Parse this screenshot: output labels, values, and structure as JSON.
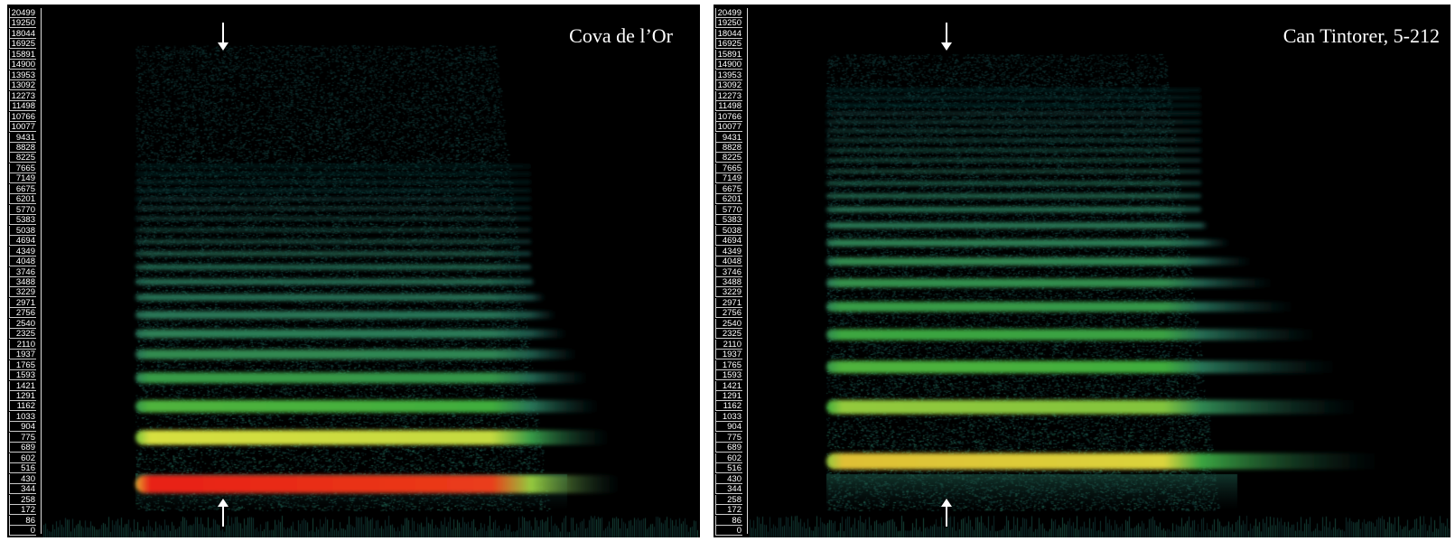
{
  "chart_data": {
    "type": "heatmap",
    "subtype": "spectrogram",
    "y_tick_labels": [
      "20499",
      "19250",
      "18044",
      "16925",
      "15891",
      "14900",
      "13953",
      "13092",
      "12273",
      "11498",
      "10766",
      "10077",
      "9431",
      "8828",
      "8225",
      "7665",
      "7149",
      "6675",
      "6201",
      "5770",
      "5383",
      "5038",
      "4694",
      "4349",
      "4048",
      "3746",
      "3488",
      "3229",
      "2971",
      "2756",
      "2540",
      "2325",
      "2110",
      "1937",
      "1765",
      "1593",
      "1421",
      "1291",
      "1162",
      "1033",
      "904",
      "775",
      "689",
      "602",
      "516",
      "430",
      "344",
      "258",
      "172",
      "86",
      "0"
    ],
    "colormap": [
      "#000000",
      "#123a3a",
      "#2a7a5a",
      "#3fae3c",
      "#d8e040",
      "#f08020",
      "#e82018"
    ],
    "panels": [
      {
        "title": "Cova de l’Or",
        "fundamental_hz": 390,
        "harmonic_intensity": [
          1.0,
          0.78,
          0.62,
          0.55,
          0.5,
          0.47,
          0.45,
          0.43,
          0.42,
          0.4,
          0.38,
          0.35,
          0.33,
          0.3,
          0.28,
          0.26,
          0.24,
          0.22,
          0.2,
          0.18
        ],
        "arrows": [
          "down-arrow",
          "up-arrow"
        ]
      },
      {
        "title": "Can Tintorer, 5-212",
        "fundamental_hz": 580,
        "harmonic_intensity": [
          0.82,
          0.7,
          0.62,
          0.58,
          0.55,
          0.52,
          0.5,
          0.48,
          0.46,
          0.44,
          0.42,
          0.4,
          0.38,
          0.36,
          0.34,
          0.32,
          0.3,
          0.28,
          0.26,
          0.24,
          0.22,
          0.2
        ],
        "arrows": [
          "down-arrow",
          "up-arrow"
        ]
      }
    ]
  }
}
